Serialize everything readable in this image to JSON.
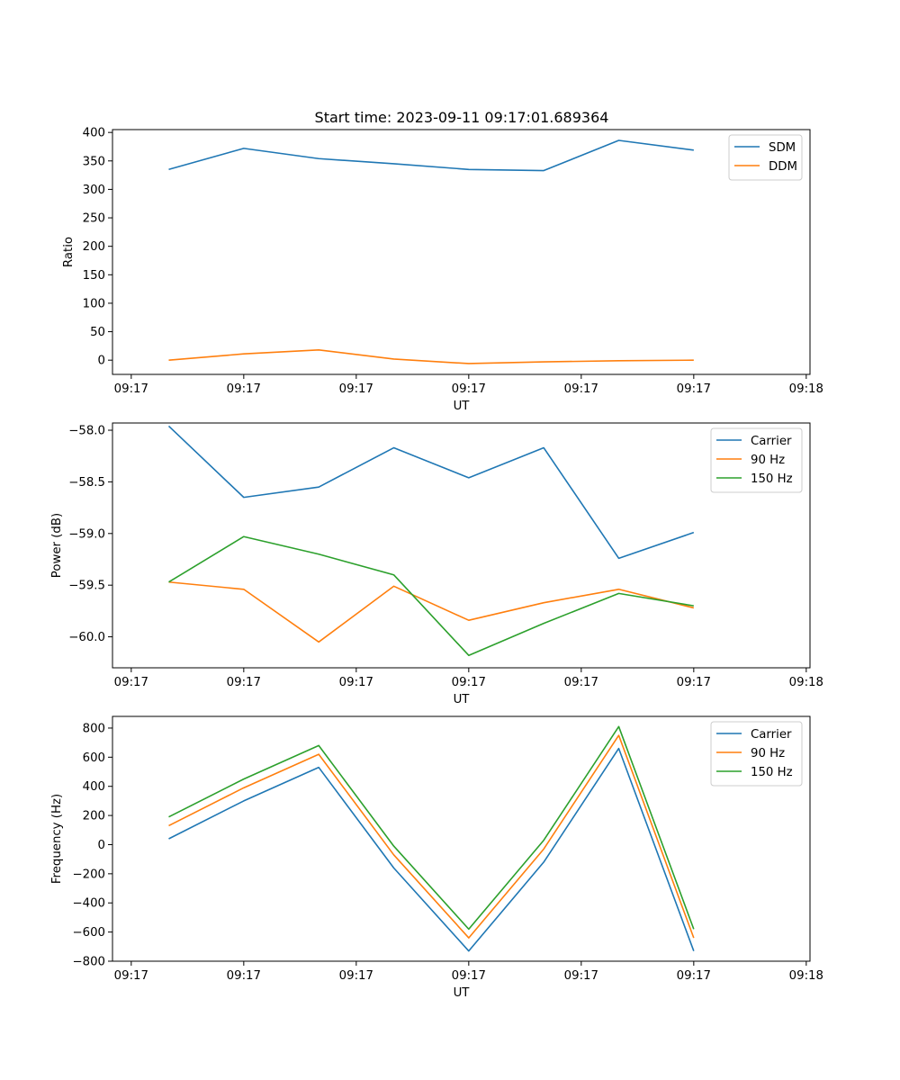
{
  "figure_title": "Start time: 2023-09-11 09:17:01.689364",
  "chart_data": [
    {
      "type": "line",
      "title": "Start time: 2023-09-11 09:17:01.689364",
      "xlabel": "UT",
      "ylabel": "Ratio",
      "x_tick_labels": [
        "09:17",
        "09:17",
        "09:17",
        "09:17",
        "09:17",
        "09:17",
        "09:18"
      ],
      "ylim": [
        -25,
        405
      ],
      "yticks": [
        0,
        50,
        100,
        150,
        200,
        250,
        300,
        350,
        400
      ],
      "ytick_labels": [
        "0",
        "50",
        "100",
        "150",
        "200",
        "250",
        "300",
        "350",
        "400"
      ],
      "x_index_range": [
        -0.75,
        8.55
      ],
      "x_tick_index": [
        -0.5,
        1,
        2.5,
        4,
        5.5,
        7,
        8.5
      ],
      "legend_position": "top-right",
      "series": [
        {
          "name": "SDM",
          "color": "#1f77b4",
          "values": [
            335,
            372,
            354,
            345,
            335,
            333,
            386,
            369
          ]
        },
        {
          "name": "DDM",
          "color": "#ff7f0e",
          "values": [
            0,
            11,
            18,
            2,
            -6,
            -3,
            -1,
            0
          ]
        }
      ]
    },
    {
      "type": "line",
      "title": "",
      "xlabel": "UT",
      "ylabel": "Power (dB)",
      "x_tick_labels": [
        "09:17",
        "09:17",
        "09:17",
        "09:17",
        "09:17",
        "09:17",
        "09:18"
      ],
      "ylim": [
        -60.3,
        -57.93
      ],
      "yticks": [
        -60.0,
        -59.5,
        -59.0,
        -58.5,
        -58.0
      ],
      "ytick_labels": [
        "−60.0",
        "−59.5",
        "−59.0",
        "−58.5",
        "−58.0"
      ],
      "x_index_range": [
        -0.75,
        8.55
      ],
      "x_tick_index": [
        -0.5,
        1,
        2.5,
        4,
        5.5,
        7,
        8.5
      ],
      "legend_position": "top-right",
      "series": [
        {
          "name": "Carrier",
          "color": "#1f77b4",
          "values": [
            -57.96,
            -58.65,
            -58.55,
            -58.17,
            -58.46,
            -58.17,
            -59.24,
            -58.99
          ]
        },
        {
          "name": "90 Hz",
          "color": "#ff7f0e",
          "values": [
            -59.47,
            -59.54,
            -60.05,
            -59.51,
            -59.84,
            -59.67,
            -59.54,
            -59.72
          ]
        },
        {
          "name": "150 Hz",
          "color": "#2ca02c",
          "values": [
            -59.47,
            -59.03,
            -59.2,
            -59.4,
            -60.18,
            -59.87,
            -59.58,
            -59.7
          ]
        }
      ]
    },
    {
      "type": "line",
      "title": "",
      "xlabel": "UT",
      "ylabel": "Frequency (Hz)",
      "x_tick_labels": [
        "09:17",
        "09:17",
        "09:17",
        "09:17",
        "09:17",
        "09:17",
        "09:18"
      ],
      "ylim": [
        -800,
        880
      ],
      "yticks": [
        -800,
        -600,
        -400,
        -200,
        0,
        200,
        400,
        600,
        800
      ],
      "ytick_labels": [
        "−800",
        "−600",
        "−400",
        "−200",
        "0",
        "200",
        "400",
        "600",
        "800"
      ],
      "x_index_range": [
        -0.75,
        8.55
      ],
      "x_tick_index": [
        -0.5,
        1,
        2.5,
        4,
        5.5,
        7,
        8.5
      ],
      "legend_position": "top-right",
      "series": [
        {
          "name": "Carrier",
          "color": "#1f77b4",
          "values": [
            40,
            300,
            530,
            -160,
            -730,
            -120,
            660,
            -730
          ]
        },
        {
          "name": "90 Hz",
          "color": "#ff7f0e",
          "values": [
            130,
            390,
            620,
            -70,
            -640,
            -30,
            750,
            -640
          ]
        },
        {
          "name": "150 Hz",
          "color": "#2ca02c",
          "values": [
            190,
            450,
            680,
            -10,
            -580,
            30,
            810,
            -580
          ]
        }
      ]
    }
  ]
}
